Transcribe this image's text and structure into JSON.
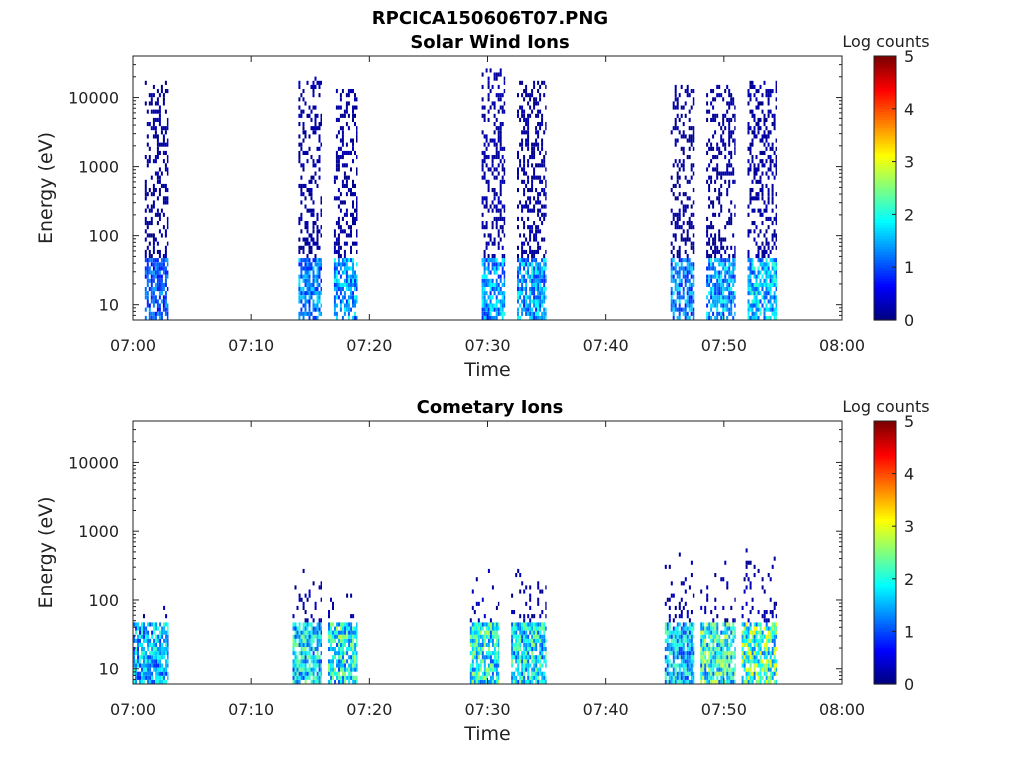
{
  "figure": {
    "title": "RPCICA150606T07.PNG"
  },
  "chart_data": [
    {
      "type": "heatmap",
      "title": "Solar Wind Ions",
      "xlabel": "Time",
      "ylabel": "Energy (eV)",
      "xlim_minutes": [
        0,
        60
      ],
      "x_ticks": [
        "07:00",
        "07:10",
        "07:20",
        "07:30",
        "07:40",
        "07:50",
        "08:00"
      ],
      "ylim": [
        6,
        40000
      ],
      "y_scale": "log",
      "y_ticks": [
        "10",
        "100",
        "1000",
        "10000"
      ],
      "colorbar": {
        "label": "Log counts",
        "range": [
          0,
          5
        ],
        "ticks": [
          "0",
          "1",
          "2",
          "3",
          "4",
          "5"
        ]
      },
      "bursts": [
        {
          "start_min": 1.0,
          "end_min": 3.0,
          "max_energy": 16000,
          "low_energy_peak_log_counts": 1.5,
          "high_energy_log_counts": 0.5
        },
        {
          "start_min": 14.0,
          "end_min": 16.0,
          "max_energy": 20000,
          "low_energy_peak_log_counts": 1.8,
          "high_energy_log_counts": 0.5
        },
        {
          "start_min": 17.0,
          "end_min": 19.0,
          "max_energy": 12000,
          "low_energy_peak_log_counts": 2.0,
          "high_energy_log_counts": 0.5
        },
        {
          "start_min": 29.5,
          "end_min": 31.5,
          "max_energy": 25000,
          "low_energy_peak_log_counts": 2.0,
          "high_energy_log_counts": 0.5
        },
        {
          "start_min": 32.5,
          "end_min": 35.0,
          "max_energy": 16000,
          "low_energy_peak_log_counts": 2.0,
          "high_energy_log_counts": 0.5
        },
        {
          "start_min": 45.5,
          "end_min": 47.5,
          "max_energy": 14000,
          "low_energy_peak_log_counts": 1.8,
          "high_energy_log_counts": 0.5
        },
        {
          "start_min": 48.5,
          "end_min": 51.0,
          "max_energy": 14000,
          "low_energy_peak_log_counts": 2.0,
          "high_energy_log_counts": 0.5
        },
        {
          "start_min": 52.0,
          "end_min": 54.5,
          "max_energy": 17000,
          "low_energy_peak_log_counts": 2.2,
          "high_energy_log_counts": 0.5
        }
      ],
      "grid": false
    },
    {
      "type": "heatmap",
      "title": "Cometary Ions",
      "xlabel": "Time",
      "ylabel": "Energy (eV)",
      "xlim_minutes": [
        0,
        60
      ],
      "x_ticks": [
        "07:00",
        "07:10",
        "07:20",
        "07:30",
        "07:40",
        "07:50",
        "08:00"
      ],
      "ylim": [
        6,
        40000
      ],
      "y_scale": "log",
      "y_ticks": [
        "10",
        "100",
        "1000",
        "10000"
      ],
      "colorbar": {
        "label": "Log counts",
        "range": [
          0,
          5
        ],
        "ticks": [
          "0",
          "1",
          "2",
          "3",
          "4",
          "5"
        ]
      },
      "bursts": [
        {
          "start_min": 0.0,
          "end_min": 3.0,
          "max_energy": 80,
          "low_energy_peak_log_counts": 2.2
        },
        {
          "start_min": 13.5,
          "end_min": 16.0,
          "max_energy": 350,
          "low_energy_peak_log_counts": 2.6
        },
        {
          "start_min": 16.5,
          "end_min": 19.0,
          "max_energy": 150,
          "low_energy_peak_log_counts": 2.8
        },
        {
          "start_min": 28.5,
          "end_min": 31.0,
          "max_energy": 300,
          "low_energy_peak_log_counts": 2.8
        },
        {
          "start_min": 32.0,
          "end_min": 35.0,
          "max_energy": 400,
          "low_energy_peak_log_counts": 2.6
        },
        {
          "start_min": 45.0,
          "end_min": 47.5,
          "max_energy": 600,
          "low_energy_peak_log_counts": 2.4
        },
        {
          "start_min": 48.0,
          "end_min": 51.0,
          "max_energy": 350,
          "low_energy_peak_log_counts": 3.0
        },
        {
          "start_min": 51.5,
          "end_min": 54.5,
          "max_energy": 500,
          "low_energy_peak_log_counts": 3.2
        }
      ],
      "grid": false
    }
  ]
}
